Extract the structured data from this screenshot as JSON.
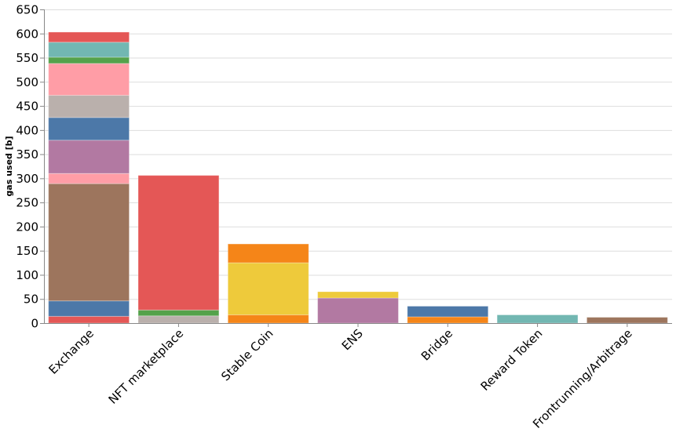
{
  "chart_data": {
    "type": "bar",
    "stacked": true,
    "title": "",
    "xlabel": "",
    "ylabel": "gas used [b]",
    "ylim": [
      0,
      650
    ],
    "yticks": [
      0,
      50,
      100,
      150,
      200,
      250,
      300,
      350,
      400,
      450,
      500,
      550,
      600,
      650
    ],
    "grid": true,
    "legend": "none",
    "categories": [
      "Exchange",
      "NFT marketplace",
      "Stable Coin",
      "ENS",
      "Bridge",
      "Reward Token",
      "Frontrunning/Arbitrage"
    ],
    "bars": [
      {
        "category": "Exchange",
        "total": 603,
        "segments": [
          {
            "value": 14,
            "color": "#e45756"
          },
          {
            "value": 32,
            "color": "#4c78a8"
          },
          {
            "value": 243,
            "color": "#9d755d"
          },
          {
            "value": 21,
            "color": "#ff9da6"
          },
          {
            "value": 69,
            "color": "#b279a2"
          },
          {
            "value": 47,
            "color": "#4c78a8"
          },
          {
            "value": 46,
            "color": "#bab0ac"
          },
          {
            "value": 66,
            "color": "#ff9da6"
          },
          {
            "value": 13,
            "color": "#54a24b"
          },
          {
            "value": 31,
            "color": "#72b7b2"
          },
          {
            "value": 21,
            "color": "#e45756"
          }
        ]
      },
      {
        "category": "NFT marketplace",
        "total": 306,
        "segments": [
          {
            "value": 15,
            "color": "#bab0ac"
          },
          {
            "value": 12,
            "color": "#54a24b"
          },
          {
            "value": 279,
            "color": "#e45756"
          }
        ]
      },
      {
        "category": "Stable Coin",
        "total": 164,
        "segments": [
          {
            "value": 17,
            "color": "#f58518"
          },
          {
            "value": 108,
            "color": "#eeca3b"
          },
          {
            "value": 39,
            "color": "#f58518"
          }
        ]
      },
      {
        "category": "ENS",
        "total": 65,
        "segments": [
          {
            "value": 52,
            "color": "#b279a2"
          },
          {
            "value": 13,
            "color": "#eeca3b"
          }
        ]
      },
      {
        "category": "Bridge",
        "total": 35,
        "segments": [
          {
            "value": 13,
            "color": "#f58518"
          },
          {
            "value": 22,
            "color": "#4c78a8"
          }
        ]
      },
      {
        "category": "Reward Token",
        "total": 17,
        "segments": [
          {
            "value": 17,
            "color": "#72b7b2"
          }
        ]
      },
      {
        "category": "Frontrunning/Arbitrage",
        "total": 12,
        "segments": [
          {
            "value": 12,
            "color": "#9d755d"
          }
        ]
      }
    ]
  }
}
